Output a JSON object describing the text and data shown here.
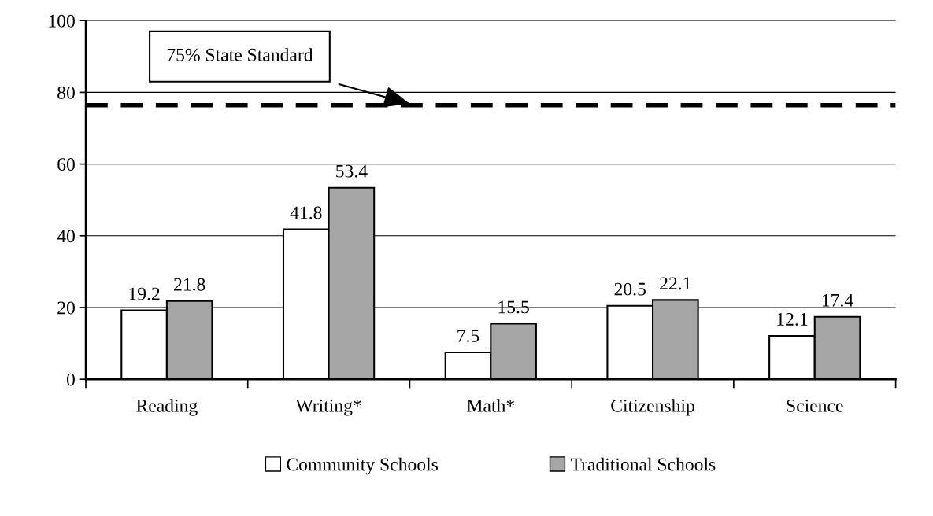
{
  "chart_data": {
    "type": "bar",
    "categories": [
      "Reading",
      "Writing*",
      "Math*",
      "Citizenship",
      "Science"
    ],
    "series": [
      {
        "name": "Community Schools",
        "color": "#ffffff",
        "values": [
          19.2,
          41.8,
          7.5,
          20.5,
          12.1
        ]
      },
      {
        "name": "Traditional Schools",
        "color": "#a6a6a6",
        "values": [
          21.8,
          53.4,
          15.5,
          22.1,
          17.4
        ]
      }
    ],
    "ylim": [
      0,
      100
    ],
    "yticks": [
      0,
      20,
      40,
      60,
      80,
      100
    ],
    "grid": "y",
    "legend": "bottom",
    "data_labels": true,
    "ref_lines": [
      {
        "axis": "y",
        "value": 76.4,
        "label": "75% State Standard",
        "color": "#000000",
        "line_style": "dashed"
      }
    ]
  }
}
